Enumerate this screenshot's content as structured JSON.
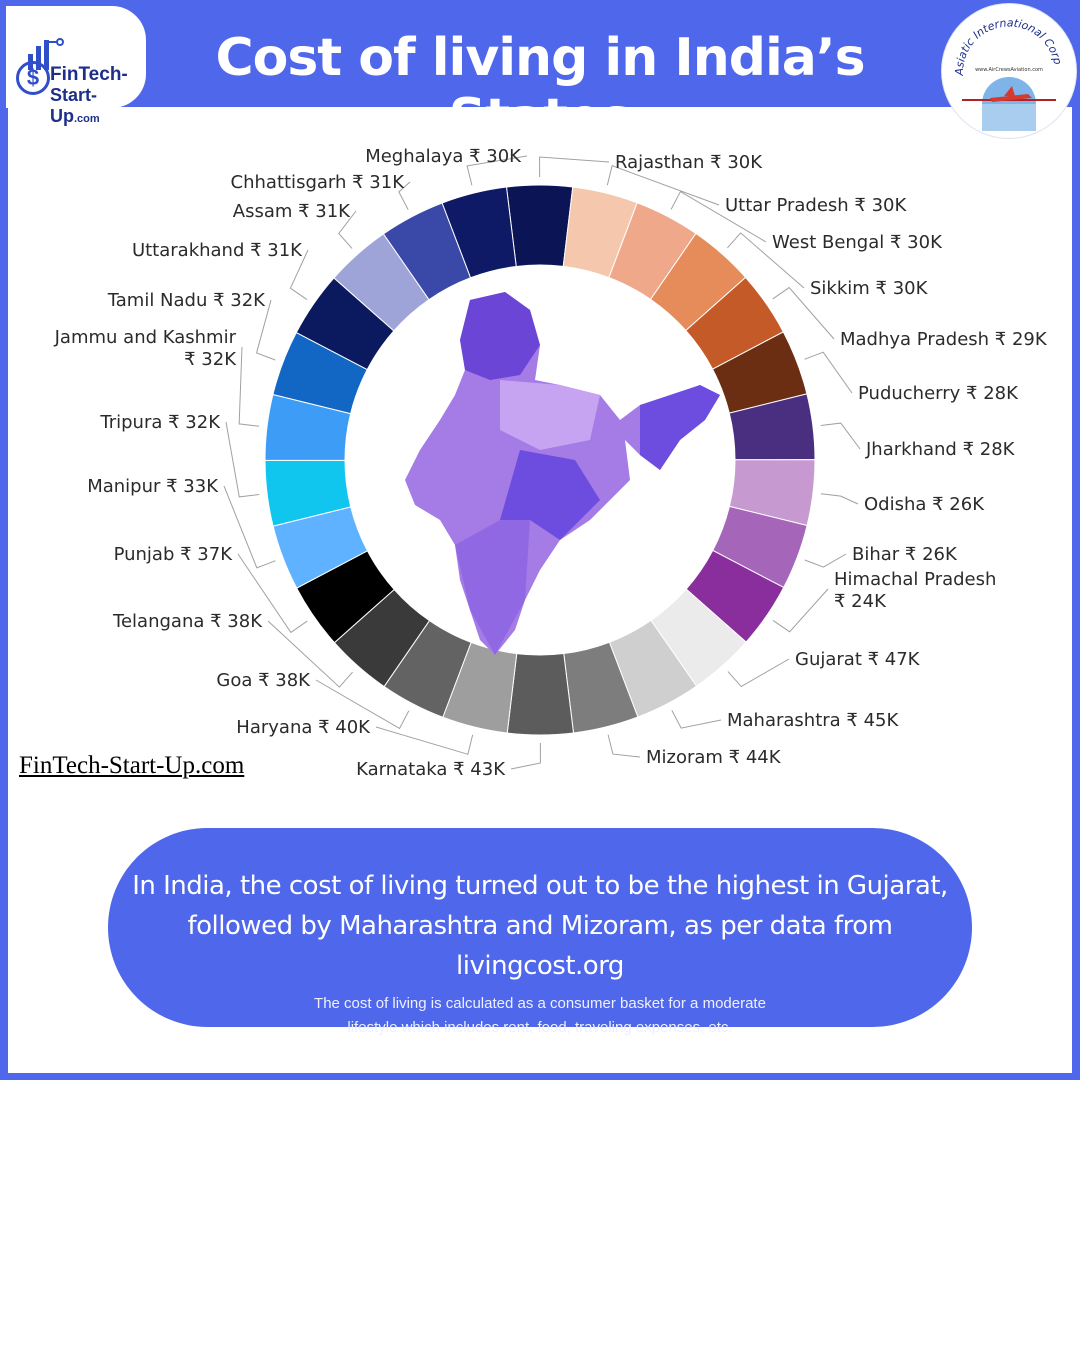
{
  "header": {
    "title": "Cost of living in India’s States",
    "logo_left": {
      "line1": "FinTech-",
      "line2": "Start-Up",
      "suffix": ".com"
    },
    "logo_right": {
      "arc_text": "Asiatic International Corp",
      "url": "www.AirCrewsAviation.com"
    }
  },
  "watermark": "FinTech-Start-Up.com",
  "summary": {
    "line1": "In India, the cost of living turned out to be the highest in Gujarat,",
    "line2": "followed by Maharashtra and Mizoram, as per data from livingcost.org",
    "sub1": "The cost of living is calculated as a consumer basket for a moderate",
    "sub2": "lifestyle which includes rent, food, traveling expenses, etc."
  },
  "chart_data": {
    "type": "pie",
    "variant": "donut",
    "currency": "₹",
    "slices": [
      {
        "label": "Rajasthan",
        "value": 30,
        "display": "₹ 30K",
        "color": "#0b1455"
      },
      {
        "label": "Uttar Pradesh",
        "value": 30,
        "display": "₹ 30K",
        "color": "#f5c7ad"
      },
      {
        "label": "West Bengal",
        "value": 30,
        "display": "₹ 30K",
        "color": "#efa98a"
      },
      {
        "label": "Sikkim",
        "value": 30,
        "display": "₹ 30K",
        "color": "#e68b5a"
      },
      {
        "label": "Madhya Pradesh",
        "value": 29,
        "display": "₹ 29K",
        "color": "#c45a28"
      },
      {
        "label": "Puducherry",
        "value": 28,
        "display": "₹ 28K",
        "color": "#6b2e12"
      },
      {
        "label": "Jharkhand",
        "value": 28,
        "display": "₹ 28K",
        "color": "#4a2f80"
      },
      {
        "label": "Odisha",
        "value": 26,
        "display": "₹ 26K",
        "color": "#c69ad0"
      },
      {
        "label": "Bihar",
        "value": 26,
        "display": "₹ 26K",
        "color": "#a565b8"
      },
      {
        "label": "Himachal Pradesh",
        "value": 24,
        "display": "₹ 24K",
        "color": "#8a2e9e"
      },
      {
        "label": "Gujarat",
        "value": 47,
        "display": "₹ 47K",
        "color": "#ebebeb"
      },
      {
        "label": "Maharashtra",
        "value": 45,
        "display": "₹ 45K",
        "color": "#cfcfcf"
      },
      {
        "label": "Mizoram",
        "value": 44,
        "display": "₹ 44K",
        "color": "#7d7d7d"
      },
      {
        "label": "Karnataka",
        "value": 43,
        "display": "₹ 43K",
        "color": "#5c5c5c"
      },
      {
        "label": "Haryana",
        "value": 40,
        "display": "₹ 40K",
        "color": "#9e9e9e"
      },
      {
        "label": "Goa",
        "value": 38,
        "display": "₹ 38K",
        "color": "#636363"
      },
      {
        "label": "Telangana",
        "value": 38,
        "display": "₹ 38K",
        "color": "#3a3a3a"
      },
      {
        "label": "Punjab",
        "value": 37,
        "display": "₹ 37K",
        "color": "#000000"
      },
      {
        "label": "Manipur",
        "value": 33,
        "display": "₹ 33K",
        "color": "#5fb2ff"
      },
      {
        "label": "Tripura",
        "value": 32,
        "display": "₹ 32K",
        "color": "#10c6ef"
      },
      {
        "label": "Jammu and Kashmir",
        "value": 32,
        "display": "₹ 32K",
        "color": "#3d9cf5"
      },
      {
        "label": "Tamil Nadu",
        "value": 32,
        "display": "₹ 32K",
        "color": "#1267c4"
      },
      {
        "label": "Uttarakhand",
        "value": 31,
        "display": "₹ 31K",
        "color": "#0b1a5e"
      },
      {
        "label": "Assam",
        "value": 31,
        "display": "₹ 31K",
        "color": "#9ea4d8"
      },
      {
        "label": "Chhattisgarh",
        "value": 31,
        "display": "₹ 31K",
        "color": "#3a48a8"
      },
      {
        "label": "Meghalaya",
        "value": 30,
        "display": "₹ 30K",
        "color": "#0e1a66"
      }
    ]
  }
}
